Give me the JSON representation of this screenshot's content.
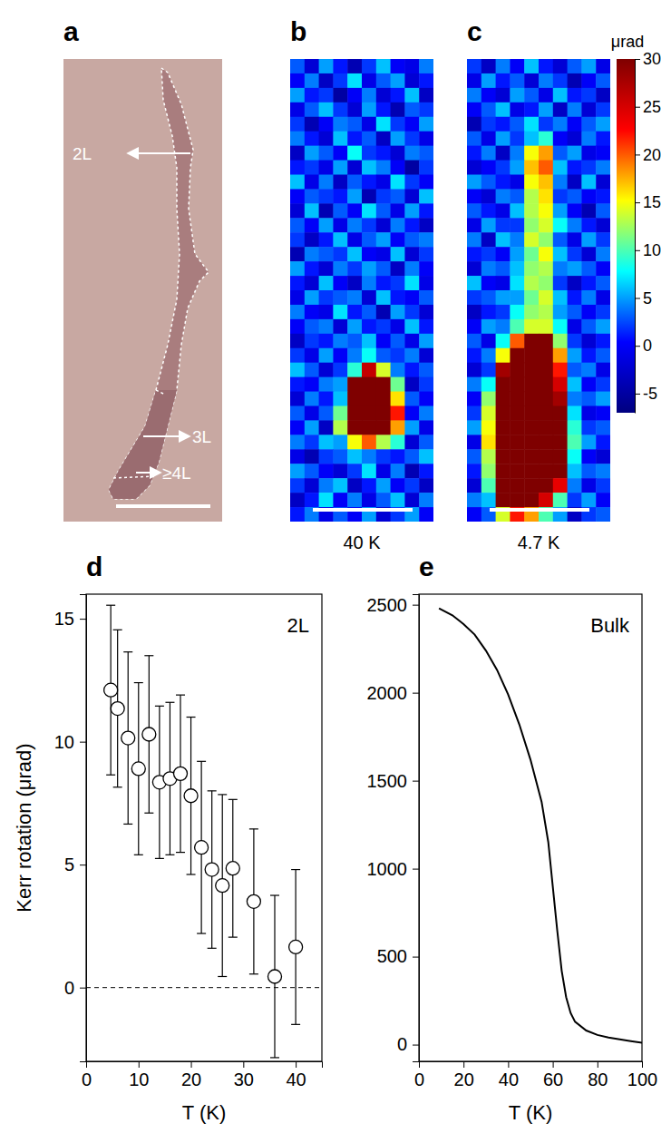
{
  "chart_data": [
    {
      "type": "image",
      "panel_label": "a",
      "annotations": [
        "2L",
        "3L",
        "≥4L"
      ]
    },
    {
      "type": "heatmap",
      "panel_labels": [
        "b",
        "c"
      ],
      "maps": [
        {
          "title": "40 K",
          "cells": [
            [
              3,
              -2,
              5,
              1,
              -4,
              2,
              6,
              0,
              -1,
              4
            ],
            [
              0,
              4,
              -3,
              2,
              7,
              -1,
              3,
              5,
              -2,
              1
            ],
            [
              5,
              1,
              2,
              -5,
              0,
              4,
              -2,
              1,
              6,
              -3
            ],
            [
              -1,
              3,
              6,
              2,
              -2,
              5,
              1,
              -4,
              3,
              2
            ],
            [
              2,
              -4,
              0,
              4,
              3,
              -1,
              7,
              2,
              0,
              5
            ],
            [
              4,
              1,
              -2,
              6,
              1,
              3,
              -3,
              5,
              2,
              -1
            ],
            [
              -3,
              5,
              3,
              0,
              8,
              2,
              1,
              -2,
              4,
              3
            ],
            [
              1,
              2,
              -1,
              5,
              -2,
              6,
              4,
              0,
              -5,
              2
            ],
            [
              6,
              -1,
              4,
              -3,
              3,
              1,
              -1,
              7,
              2,
              0
            ],
            [
              0,
              3,
              2,
              1,
              5,
              -4,
              2,
              3,
              -2,
              6
            ],
            [
              -2,
              6,
              -4,
              3,
              0,
              7,
              3,
              -1,
              5,
              1
            ],
            [
              3,
              0,
              5,
              -1,
              4,
              2,
              -2,
              4,
              1,
              -3
            ],
            [
              2,
              -3,
              1,
              6,
              -1,
              3,
              5,
              0,
              3,
              4
            ],
            [
              -4,
              4,
              3,
              2,
              6,
              0,
              -1,
              6,
              -2,
              2
            ],
            [
              5,
              1,
              -2,
              4,
              2,
              5,
              3,
              -3,
              4,
              0
            ],
            [
              1,
              -2,
              6,
              0,
              -3,
              4,
              1,
              2,
              7,
              -1
            ],
            [
              -1,
              5,
              2,
              3,
              4,
              -2,
              6,
              1,
              0,
              3
            ],
            [
              4,
              0,
              -1,
              7,
              1,
              3,
              -4,
              5,
              2,
              -2
            ],
            [
              0,
              3,
              4,
              -2,
              5,
              1,
              2,
              -1,
              6,
              1
            ],
            [
              -3,
              2,
              1,
              4,
              3,
              6,
              0,
              3,
              -1,
              5
            ],
            [
              2,
              -1,
              5,
              0,
              4,
              8,
              3,
              2,
              4,
              -2
            ],
            [
              6,
              3,
              -2,
              2,
              9,
              26,
              14,
              4,
              1,
              3
            ],
            [
              1,
              0,
              4,
              5,
              32,
              40,
              40,
              11,
              -3,
              2
            ],
            [
              -2,
              4,
              1,
              6,
              40,
              40,
              40,
              16,
              3,
              0
            ],
            [
              3,
              -1,
              3,
              11,
              40,
              40,
              40,
              22,
              0,
              4
            ],
            [
              0,
              5,
              -3,
              13,
              40,
              40,
              38,
              18,
              5,
              -1
            ],
            [
              4,
              2,
              6,
              5,
              15,
              20,
              13,
              9,
              -2,
              3
            ],
            [
              -1,
              -4,
              2,
              3,
              6,
              4,
              2,
              1,
              3,
              6
            ],
            [
              5,
              3,
              0,
              -2,
              2,
              7,
              -1,
              4,
              -4,
              1
            ],
            [
              2,
              -2,
              4,
              6,
              -3,
              1,
              5,
              0,
              2,
              -3
            ],
            [
              -3,
              1,
              7,
              0,
              4,
              -1,
              3,
              6,
              -2,
              4
            ],
            [
              1,
              4,
              -1,
              3,
              0,
              5,
              -2,
              2,
              5,
              0
            ]
          ]
        },
        {
          "title": "4.7 K",
          "cells": [
            [
              2,
              -3,
              4,
              0,
              6,
              1,
              -2,
              3,
              5,
              -1
            ],
            [
              -1,
              5,
              1,
              3,
              -2,
              4,
              2,
              -4,
              0,
              3
            ],
            [
              4,
              0,
              -2,
              5,
              3,
              -1,
              6,
              1,
              2,
              -3
            ],
            [
              0,
              3,
              6,
              -1,
              1,
              5,
              -3,
              4,
              -2,
              2
            ],
            [
              -4,
              2,
              1,
              3,
              7,
              2,
              4,
              0,
              3,
              5
            ],
            [
              3,
              -1,
              5,
              2,
              6,
              9,
              0,
              -2,
              4,
              1
            ],
            [
              1,
              4,
              -3,
              4,
              15,
              18,
              3,
              5,
              -1,
              0
            ],
            [
              -2,
              0,
              2,
              5,
              17,
              20,
              6,
              1,
              2,
              4
            ],
            [
              5,
              3,
              1,
              -1,
              15,
              17,
              4,
              -3,
              6,
              -2
            ],
            [
              0,
              -2,
              4,
              3,
              13,
              16,
              2,
              3,
              0,
              1
            ],
            [
              3,
              1,
              -1,
              6,
              13,
              15,
              5,
              0,
              -4,
              3
            ],
            [
              -1,
              5,
              2,
              2,
              12,
              14,
              8,
              4,
              1,
              -2
            ],
            [
              4,
              -3,
              6,
              4,
              14,
              12,
              3,
              -1,
              5,
              2
            ],
            [
              1,
              2,
              0,
              5,
              11,
              15,
              6,
              2,
              -2,
              4
            ],
            [
              -2,
              4,
              3,
              6,
              12,
              13,
              4,
              5,
              3,
              0
            ],
            [
              6,
              0,
              -1,
              7,
              13,
              12,
              2,
              -3,
              1,
              3
            ],
            [
              2,
              3,
              5,
              5,
              11,
              14,
              6,
              1,
              4,
              -1
            ],
            [
              -3,
              1,
              2,
              8,
              12,
              13,
              5,
              3,
              0,
              2
            ],
            [
              0,
              5,
              4,
              10,
              14,
              14,
              8,
              -1,
              3,
              5
            ],
            [
              3,
              -1,
              8,
              20,
              40,
              40,
              12,
              2,
              -2,
              1
            ],
            [
              1,
              4,
              15,
              40,
              40,
              40,
              18,
              5,
              1,
              3
            ],
            [
              -2,
              2,
              28,
              40,
              40,
              40,
              22,
              3,
              4,
              -1
            ],
            [
              4,
              8,
              40,
              40,
              40,
              40,
              25,
              6,
              0,
              2
            ],
            [
              0,
              12,
              40,
              40,
              40,
              40,
              28,
              4,
              3,
              5
            ],
            [
              2,
              14,
              40,
              40,
              40,
              40,
              32,
              7,
              -1,
              0
            ],
            [
              5,
              15,
              40,
              40,
              40,
              40,
              40,
              9,
              2,
              3
            ],
            [
              -1,
              16,
              40,
              40,
              40,
              40,
              40,
              10,
              5,
              1
            ],
            [
              3,
              13,
              40,
              40,
              40,
              40,
              40,
              8,
              0,
              -2
            ],
            [
              1,
              12,
              40,
              40,
              40,
              40,
              35,
              6,
              3,
              4
            ],
            [
              -2,
              10,
              40,
              40,
              40,
              40,
              24,
              4,
              -1,
              2
            ],
            [
              4,
              6,
              30,
              40,
              40,
              25,
              10,
              2,
              5,
              0
            ],
            [
              0,
              3,
              14,
              22,
              18,
              10,
              5,
              -3,
              2,
              3
            ]
          ]
        }
      ],
      "colorbar": {
        "label": "μrad",
        "range": [
          -7,
          30
        ],
        "ticks": [
          -5,
          0,
          5,
          10,
          15,
          20,
          25,
          30
        ]
      }
    },
    {
      "type": "scatter",
      "panel_label": "d",
      "annotation": "2L",
      "x_label": "T (K)",
      "y_label": "Kerr rotation (μrad)",
      "x": [
        4.7,
        6,
        8,
        10,
        12,
        14,
        16,
        18,
        20,
        22,
        24,
        26,
        28,
        32,
        36,
        40
      ],
      "values": [
        12.1,
        11.35,
        10.15,
        8.9,
        10.3,
        8.35,
        8.5,
        8.7,
        7.8,
        5.7,
        4.8,
        4.15,
        4.85,
        3.5,
        0.45,
        1.65
      ],
      "errors": [
        3.45,
        3.2,
        3.5,
        3.5,
        3.2,
        3.1,
        3.1,
        3.2,
        3.2,
        3.5,
        3.2,
        3.7,
        2.8,
        2.95,
        3.3,
        3.15
      ],
      "hline": 0,
      "marker": "circle",
      "color": "#000000",
      "xlim": [
        0,
        45
      ],
      "xticks": [
        0,
        10,
        20,
        30,
        40
      ],
      "ylim": [
        -3,
        16
      ],
      "yticks": [
        0,
        5,
        10,
        15
      ]
    },
    {
      "type": "line",
      "panel_label": "e",
      "annotation": "Bulk",
      "x_label": "T (K)",
      "x": [
        9,
        15,
        20,
        25,
        30,
        35,
        40,
        45,
        50,
        55,
        58,
        60,
        62,
        64,
        66,
        68,
        70,
        75,
        80,
        85,
        90,
        95,
        100
      ],
      "values": [
        2480,
        2440,
        2390,
        2330,
        2240,
        2130,
        1990,
        1820,
        1620,
        1380,
        1150,
        900,
        650,
        420,
        270,
        180,
        130,
        80,
        55,
        40,
        30,
        20,
        10
      ],
      "color": "#000000",
      "xlim": [
        0,
        100
      ],
      "xticks": [
        0,
        20,
        40,
        60,
        80,
        100
      ],
      "ylim": [
        -95,
        2560
      ],
      "yticks": [
        0,
        500,
        1000,
        1500,
        2000,
        2500
      ]
    }
  ]
}
